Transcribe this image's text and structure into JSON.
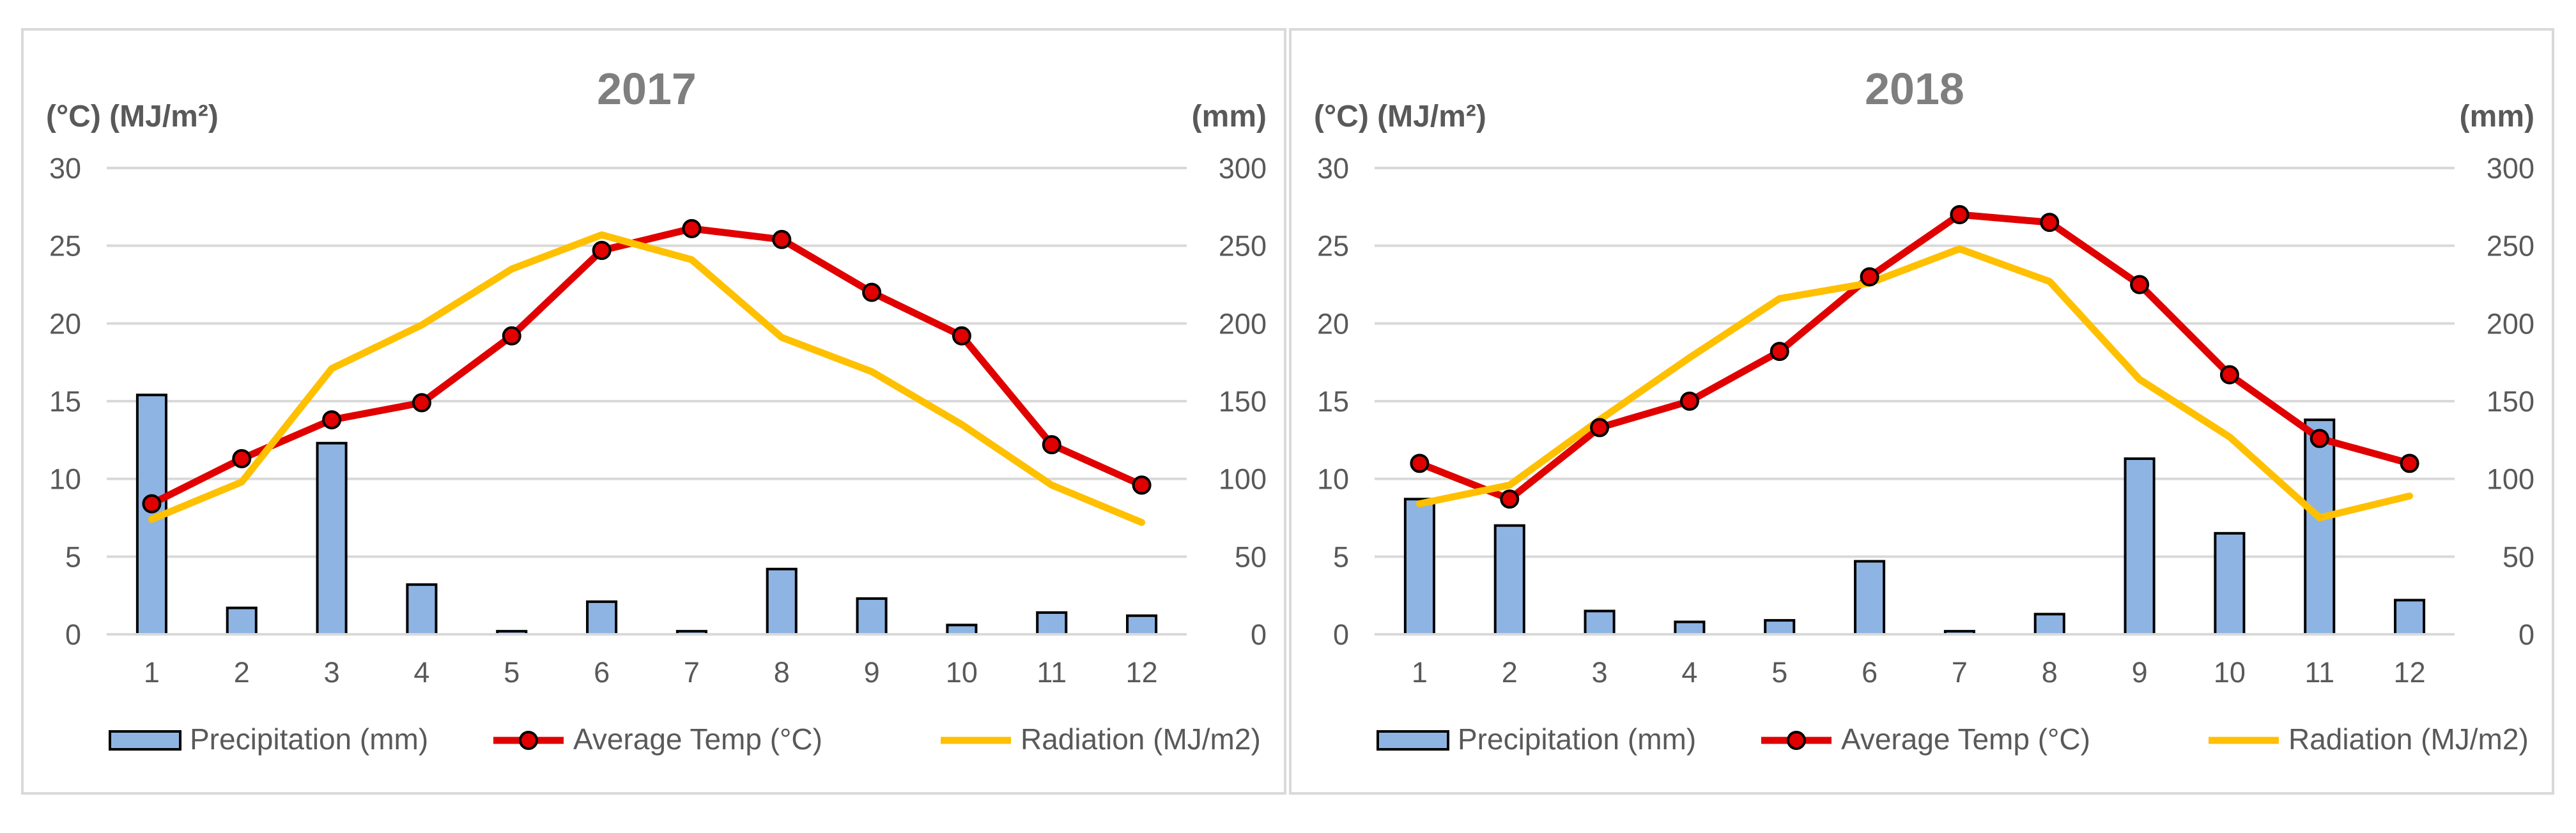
{
  "chart_data": [
    {
      "type": "bar+line",
      "title": "2017",
      "left_axis_label": "(°C) (MJ/m²)",
      "right_axis_label": "(mm)",
      "categories": [
        "1",
        "2",
        "3",
        "4",
        "5",
        "6",
        "7",
        "8",
        "9",
        "10",
        "11",
        "12"
      ],
      "ylim_left": [
        0,
        30
      ],
      "ylim_right": [
        0,
        300
      ],
      "yticks_left": [
        "0",
        "5",
        "10",
        "15",
        "20",
        "25",
        "30"
      ],
      "yticks_right": [
        "0",
        "50",
        "100",
        "150",
        "200",
        "250",
        "300"
      ],
      "grid": true,
      "legend_position": "bottom",
      "series": [
        {
          "name": "Precipitation (mm)",
          "type": "bar",
          "axis": "right",
          "color": "#8eb4e3",
          "values": [
            154,
            17,
            123,
            32,
            2,
            21,
            2,
            42,
            23,
            6,
            14,
            12
          ]
        },
        {
          "name": "Average Temp (°C)",
          "type": "line-marker",
          "axis": "left",
          "color": "#e00000",
          "values": [
            8.4,
            11.3,
            13.8,
            14.9,
            19.2,
            24.7,
            26.1,
            25.4,
            22.0,
            19.2,
            12.2,
            9.6
          ]
        },
        {
          "name": "Radiation (MJ/m2)",
          "type": "line",
          "axis": "left",
          "color": "#ffc000",
          "values": [
            7.4,
            9.8,
            17.1,
            19.9,
            23.5,
            25.7,
            24.1,
            19.1,
            16.9,
            13.5,
            9.6,
            7.2
          ]
        }
      ]
    },
    {
      "type": "bar+line",
      "title": "2018",
      "left_axis_label": "(°C) (MJ/m²)",
      "right_axis_label": "(mm)",
      "categories": [
        "1",
        "2",
        "3",
        "4",
        "5",
        "6",
        "7",
        "8",
        "9",
        "10",
        "11",
        "12"
      ],
      "ylim_left": [
        0,
        30
      ],
      "ylim_right": [
        0,
        300
      ],
      "yticks_left": [
        "0",
        "5",
        "10",
        "15",
        "20",
        "25",
        "30"
      ],
      "yticks_right": [
        "0",
        "50",
        "100",
        "150",
        "200",
        "250",
        "300"
      ],
      "grid": true,
      "legend_position": "bottom",
      "series": [
        {
          "name": "Precipitation (mm)",
          "type": "bar",
          "axis": "right",
          "color": "#8eb4e3",
          "values": [
            87,
            70,
            15,
            8,
            9,
            47,
            2,
            13,
            113,
            65,
            138,
            22
          ]
        },
        {
          "name": "Average Temp (°C)",
          "type": "line-marker",
          "axis": "left",
          "color": "#e00000",
          "values": [
            11.0,
            8.7,
            13.3,
            15.0,
            18.2,
            23.0,
            27.0,
            26.5,
            22.5,
            16.7,
            12.6,
            11.0
          ]
        },
        {
          "name": "Radiation (MJ/m2)",
          "type": "line",
          "axis": "left",
          "color": "#ffc000",
          "values": [
            8.4,
            9.6,
            13.8,
            17.8,
            21.6,
            22.6,
            24.8,
            22.7,
            16.4,
            12.7,
            7.5,
            8.9
          ]
        }
      ]
    }
  ]
}
